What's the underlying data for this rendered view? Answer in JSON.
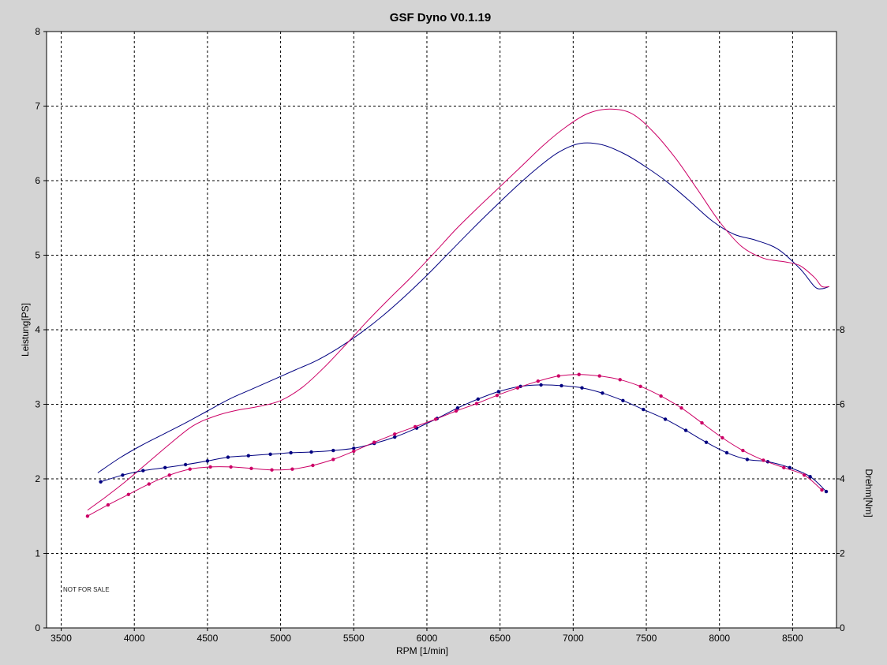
{
  "chart_data": {
    "type": "line",
    "title": "GSF Dyno V0.1.19",
    "xlabel": "RPM [1/min]",
    "ylabel_left": "Leistung[PS]",
    "ylabel_right": "Drehm[Nm]",
    "xlim": [
      3400,
      8800
    ],
    "ylim_left": [
      0,
      8
    ],
    "ylim_right": [
      0,
      16
    ],
    "x_ticks": [
      3500,
      4000,
      4500,
      5000,
      5500,
      6000,
      6500,
      7000,
      7500,
      8000,
      8500
    ],
    "y_ticks_left": [
      0,
      1,
      2,
      3,
      4,
      5,
      6,
      7,
      8
    ],
    "y_ticks_right": [
      0,
      2,
      4,
      6,
      8
    ],
    "grid": true,
    "note": "NOT FOR SALE",
    "colors": {
      "blue": "#000080",
      "pink": "#cc0066",
      "background": "#ffffff",
      "frame": "#d4d4d4"
    },
    "series": [
      {
        "axis": "left",
        "color": "#000080",
        "markers": false,
        "x": [
          3750,
          3900,
          4050,
          4200,
          4350,
          4500,
          4650,
          4800,
          4950,
          5100,
          5250,
          5400,
          5550,
          5700,
          5850,
          6000,
          6150,
          6300,
          6450,
          6600,
          6750,
          6900,
          7050,
          7200,
          7350,
          7500,
          7650,
          7800,
          7950,
          8100,
          8250,
          8400,
          8550,
          8650,
          8700,
          8750
        ],
        "y": [
          2.08,
          2.28,
          2.45,
          2.6,
          2.75,
          2.91,
          3.07,
          3.2,
          3.33,
          3.46,
          3.59,
          3.76,
          3.96,
          4.19,
          4.45,
          4.73,
          5.03,
          5.33,
          5.62,
          5.9,
          6.16,
          6.38,
          6.5,
          6.48,
          6.36,
          6.18,
          5.97,
          5.72,
          5.46,
          5.28,
          5.2,
          5.08,
          4.82,
          4.58,
          4.55,
          4.58
        ]
      },
      {
        "axis": "left",
        "color": "#cc0066",
        "markers": false,
        "x": [
          3680,
          3800,
          3950,
          4100,
          4250,
          4400,
          4550,
          4700,
          4850,
          5000,
          5150,
          5300,
          5450,
          5600,
          5750,
          5900,
          6050,
          6200,
          6350,
          6500,
          6650,
          6800,
          6950,
          7100,
          7250,
          7400,
          7550,
          7700,
          7850,
          8000,
          8150,
          8300,
          8450,
          8550,
          8650,
          8700,
          8750
        ],
        "y": [
          1.58,
          1.75,
          1.98,
          2.23,
          2.48,
          2.71,
          2.84,
          2.92,
          2.97,
          3.05,
          3.23,
          3.5,
          3.81,
          4.13,
          4.43,
          4.72,
          5.03,
          5.35,
          5.64,
          5.92,
          6.2,
          6.48,
          6.72,
          6.9,
          6.96,
          6.9,
          6.65,
          6.3,
          5.88,
          5.45,
          5.12,
          4.96,
          4.91,
          4.86,
          4.7,
          4.58,
          4.58
        ]
      },
      {
        "axis": "right",
        "color": "#000080",
        "markers": true,
        "x": [
          3770,
          3920,
          4060,
          4210,
          4350,
          4500,
          4640,
          4780,
          4930,
          5070,
          5210,
          5360,
          5500,
          5640,
          5780,
          5930,
          6070,
          6210,
          6350,
          6490,
          6640,
          6780,
          6920,
          7060,
          7200,
          7340,
          7480,
          7630,
          7770,
          7910,
          8050,
          8190,
          8330,
          8480,
          8620,
          8730
        ],
        "y": [
          3.92,
          4.1,
          4.22,
          4.3,
          4.38,
          4.48,
          4.58,
          4.62,
          4.66,
          4.7,
          4.72,
          4.76,
          4.82,
          4.95,
          5.12,
          5.36,
          5.62,
          5.9,
          6.14,
          6.34,
          6.48,
          6.52,
          6.5,
          6.44,
          6.3,
          6.1,
          5.86,
          5.6,
          5.3,
          4.98,
          4.7,
          4.52,
          4.46,
          4.3,
          4.06,
          3.66
        ]
      },
      {
        "axis": "right",
        "color": "#cc0066",
        "markers": true,
        "x": [
          3680,
          3820,
          3960,
          4100,
          4240,
          4380,
          4520,
          4660,
          4800,
          4940,
          5080,
          5220,
          5360,
          5500,
          5640,
          5780,
          5920,
          6060,
          6200,
          6340,
          6480,
          6620,
          6760,
          6900,
          7040,
          7180,
          7320,
          7460,
          7600,
          7740,
          7880,
          8020,
          8160,
          8300,
          8440,
          8580,
          8700
        ],
        "y": [
          3.0,
          3.3,
          3.58,
          3.86,
          4.1,
          4.26,
          4.32,
          4.32,
          4.28,
          4.24,
          4.26,
          4.36,
          4.52,
          4.74,
          4.98,
          5.2,
          5.4,
          5.6,
          5.82,
          6.02,
          6.24,
          6.44,
          6.62,
          6.76,
          6.8,
          6.76,
          6.66,
          6.48,
          6.22,
          5.9,
          5.5,
          5.1,
          4.76,
          4.5,
          4.3,
          4.1,
          3.7
        ]
      }
    ]
  }
}
